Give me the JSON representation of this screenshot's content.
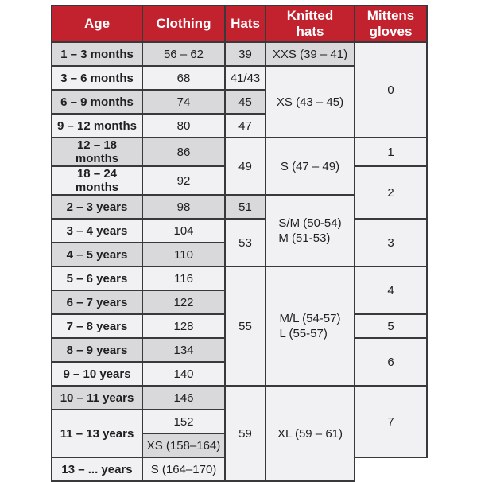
{
  "page": {
    "background": "#ffffff"
  },
  "colors": {
    "accent": "#c2212e",
    "stripe_gray": "#d9d9db",
    "stripe_light": "#f1f1f3",
    "border": "#39393b",
    "header_text": "#ffffff",
    "cell_text": "#1f1f1f"
  },
  "table": {
    "columns": [
      "Age",
      "Clothing",
      "Hats",
      "Knitted\nhats",
      "Mittens\ngloves"
    ],
    "rows": [
      {
        "cells": [
          {
            "col": "age",
            "text": "1 – 3 months",
            "shade": "gray",
            "bold": true
          },
          {
            "col": "clothing",
            "text": "56 – 62",
            "shade": "gray"
          },
          {
            "col": "hats",
            "text": "39",
            "shade": "gray"
          },
          {
            "col": "knitted-hats",
            "text": "XXS (39 – 41)",
            "shade": "gray"
          },
          {
            "col": "mittens-gloves",
            "text": "0",
            "shade": "light",
            "rowspan": 4
          }
        ]
      },
      {
        "cells": [
          {
            "col": "age",
            "text": "3 – 6 months",
            "shade": "light",
            "bold": true
          },
          {
            "col": "clothing",
            "text": "68",
            "shade": "light"
          },
          {
            "col": "hats",
            "text": "41/43",
            "shade": "light"
          },
          {
            "col": "knitted-hats",
            "text": "XS (43 – 45)",
            "shade": "light",
            "rowspan": 3
          }
        ]
      },
      {
        "cells": [
          {
            "col": "age",
            "text": "6 – 9 months",
            "shade": "gray",
            "bold": true
          },
          {
            "col": "clothing",
            "text": "74",
            "shade": "gray"
          },
          {
            "col": "hats",
            "text": "45",
            "shade": "gray"
          }
        ]
      },
      {
        "cells": [
          {
            "col": "age",
            "text": "9 – 12 months",
            "shade": "light",
            "bold": true
          },
          {
            "col": "clothing",
            "text": "80",
            "shade": "light"
          },
          {
            "col": "hats",
            "text": "47",
            "shade": "light"
          }
        ]
      },
      {
        "cells": [
          {
            "col": "age",
            "text": "12 – 18 months",
            "shade": "gray",
            "bold": true
          },
          {
            "col": "clothing",
            "text": "86",
            "shade": "gray"
          },
          {
            "col": "hats",
            "text": "49",
            "shade": "light",
            "rowspan": 2
          },
          {
            "col": "knitted-hats",
            "text": "S (47 – 49)",
            "shade": "light",
            "rowspan": 2
          },
          {
            "col": "mittens-gloves",
            "text": "1",
            "shade": "light"
          }
        ]
      },
      {
        "cells": [
          {
            "col": "age",
            "text": "18 – 24 months",
            "shade": "light",
            "bold": true
          },
          {
            "col": "clothing",
            "text": "92",
            "shade": "light"
          },
          {
            "col": "mittens-gloves",
            "text": "2",
            "shade": "light",
            "rowspan": 2
          }
        ]
      },
      {
        "cells": [
          {
            "col": "age",
            "text": "2 – 3 years",
            "shade": "gray",
            "bold": true
          },
          {
            "col": "clothing",
            "text": "98",
            "shade": "gray"
          },
          {
            "col": "hats",
            "text": "51",
            "shade": "gray"
          },
          {
            "col": "knitted-hats",
            "lines": [
              "S/M (50-54)",
              "M (51-53)"
            ],
            "shade": "light",
            "rowspan": 3
          }
        ]
      },
      {
        "cells": [
          {
            "col": "age",
            "text": "3 – 4 years",
            "shade": "light",
            "bold": true
          },
          {
            "col": "clothing",
            "text": "104",
            "shade": "light"
          },
          {
            "col": "hats",
            "text": "53",
            "shade": "light",
            "rowspan": 2
          },
          {
            "col": "mittens-gloves",
            "text": "3",
            "shade": "light",
            "rowspan": 2
          }
        ]
      },
      {
        "cells": [
          {
            "col": "age",
            "text": "4 – 5 years",
            "shade": "gray",
            "bold": true
          },
          {
            "col": "clothing",
            "text": "110",
            "shade": "gray"
          }
        ]
      },
      {
        "cells": [
          {
            "col": "age",
            "text": "5 – 6 years",
            "shade": "light",
            "bold": true
          },
          {
            "col": "clothing",
            "text": "116",
            "shade": "light"
          },
          {
            "col": "hats",
            "text": "55",
            "shade": "light",
            "rowspan": 5
          },
          {
            "col": "knitted-hats",
            "lines": [
              "M/L (54-57)",
              "L (55-57)"
            ],
            "shade": "light",
            "rowspan": 5
          },
          {
            "col": "mittens-gloves",
            "text": "4",
            "shade": "light",
            "rowspan": 2
          }
        ]
      },
      {
        "cells": [
          {
            "col": "age",
            "text": "6 – 7 years",
            "shade": "gray",
            "bold": true
          },
          {
            "col": "clothing",
            "text": "122",
            "shade": "gray"
          }
        ]
      },
      {
        "cells": [
          {
            "col": "age",
            "text": "7 – 8 years",
            "shade": "light",
            "bold": true
          },
          {
            "col": "clothing",
            "text": "128",
            "shade": "light"
          },
          {
            "col": "mittens-gloves",
            "text": "5",
            "shade": "light"
          }
        ]
      },
      {
        "cells": [
          {
            "col": "age",
            "text": "8 – 9 years",
            "shade": "gray",
            "bold": true
          },
          {
            "col": "clothing",
            "text": "134",
            "shade": "gray"
          },
          {
            "col": "mittens-gloves",
            "text": "6",
            "shade": "light",
            "rowspan": 2
          }
        ]
      },
      {
        "cells": [
          {
            "col": "age",
            "text": "9 – 10 years",
            "shade": "light",
            "bold": true
          },
          {
            "col": "clothing",
            "text": "140",
            "shade": "light"
          }
        ]
      },
      {
        "cells": [
          {
            "col": "age",
            "text": "10 – 11 years",
            "shade": "gray",
            "bold": true
          },
          {
            "col": "clothing",
            "text": "146",
            "shade": "gray"
          },
          {
            "col": "hats",
            "text": "59",
            "shade": "light",
            "rowspan": 4
          },
          {
            "col": "knitted-hats",
            "text": "XL (59 – 61)",
            "shade": "light",
            "rowspan": 4
          },
          {
            "col": "mittens-gloves",
            "text": "7",
            "shade": "light",
            "rowspan": 3
          }
        ]
      },
      {
        "cells": [
          {
            "col": "age",
            "text": "11 – 13 years",
            "shade": "light",
            "bold": true,
            "rowspan": 2,
            "valign": "top"
          },
          {
            "col": "clothing",
            "text": "152",
            "shade": "light"
          }
        ]
      },
      {
        "cells": [
          {
            "col": "clothing",
            "text": "XS (158–164)",
            "shade": "gray"
          }
        ]
      },
      {
        "cells": [
          {
            "col": "age",
            "text": "13 – ... years",
            "shade": "light",
            "bold": true
          },
          {
            "col": "clothing",
            "text": "S (164–170)",
            "shade": "light"
          }
        ]
      }
    ]
  }
}
